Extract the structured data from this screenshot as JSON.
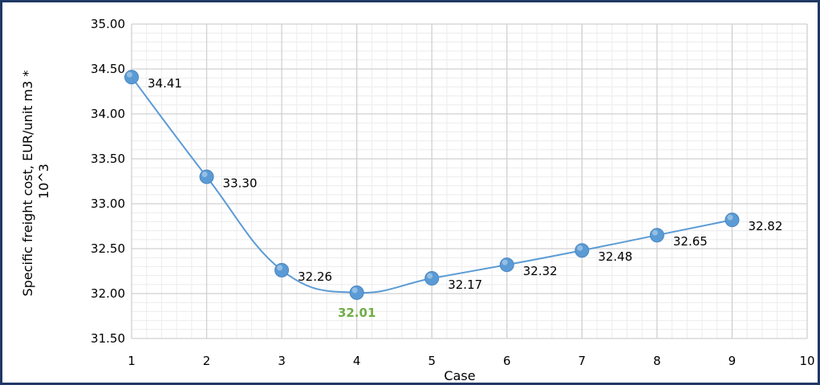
{
  "chart_data": {
    "type": "line",
    "title": "",
    "xlabel": "Case",
    "ylabel": "Specific freight cost, EUR/unit m3 * 10^3",
    "ylabel_lines": [
      "Specific freight cost, EUR/unit m3 *",
      "10^3"
    ],
    "xlim": [
      1,
      10
    ],
    "ylim": [
      31.5,
      35.0
    ],
    "x_ticks": [
      "1",
      "2",
      "3",
      "4",
      "5",
      "6",
      "7",
      "8",
      "9",
      "10"
    ],
    "y_ticks": [
      "31.50",
      "32.00",
      "32.50",
      "33.00",
      "33.50",
      "34.00",
      "34.50",
      "35.00"
    ],
    "grid": true,
    "smooth": true,
    "series": [
      {
        "x": [
          1,
          2,
          3,
          4,
          5,
          6,
          7,
          8,
          9
        ],
        "values": [
          34.41,
          33.3,
          32.26,
          32.01,
          32.17,
          32.32,
          32.48,
          32.65,
          32.82
        ],
        "labels": [
          "34.41",
          "33.30",
          "32.26",
          "32.01",
          "32.17",
          "32.32",
          "32.48",
          "32.65",
          "32.82"
        ],
        "color": "#5b9bd5"
      }
    ],
    "highlight_index": 3,
    "highlight_color": "#70ad47"
  }
}
